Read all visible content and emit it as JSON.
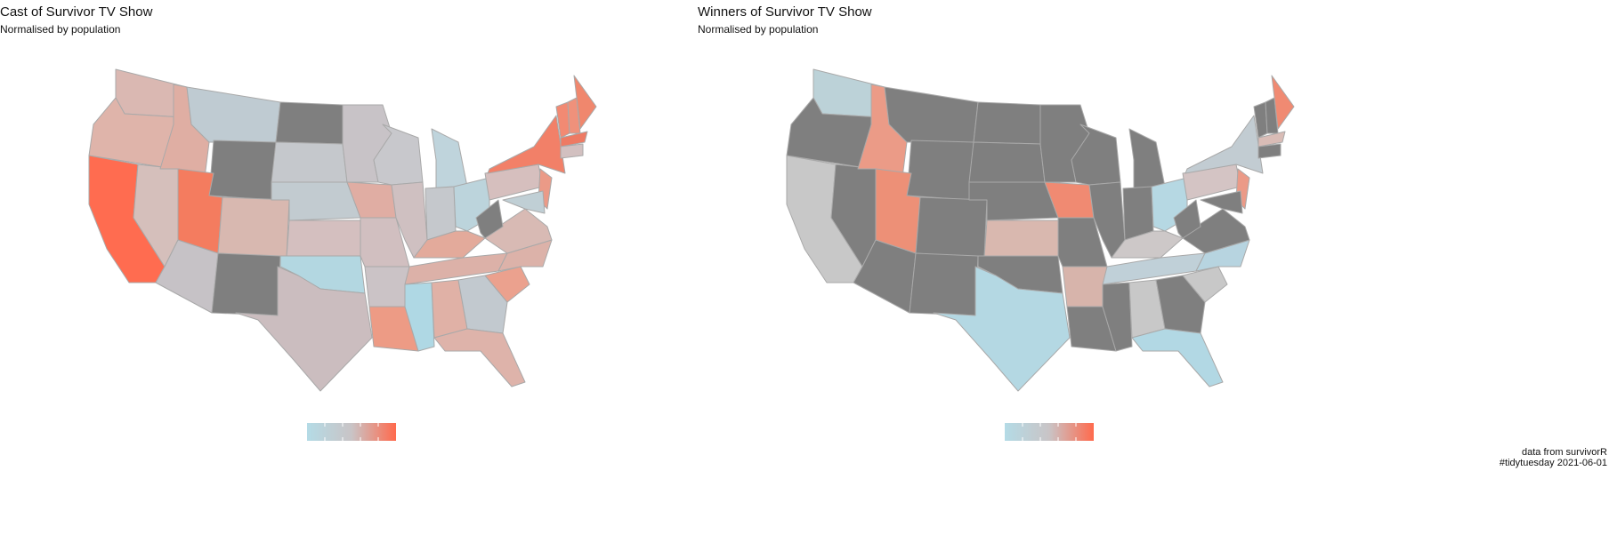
{
  "panels": [
    {
      "title": "Cast of Survivor TV Show",
      "subtitle": "Normalised by population",
      "fills": [
        "#dab8b2",
        "#dfb4aa",
        "#ff6c50",
        "#d5bfbb",
        "#dfaea3",
        "#bfcbd2",
        "#7f7f7f",
        "#f47c5f",
        "#c6c2c6",
        "#d8b8b0",
        "#7f7f7f",
        "#7f7f7f",
        "#c5c8cc",
        "#c2cbd0",
        "#d4bfbf",
        "#b3d7e1",
        "#cbbdbf",
        "#c8c3c7",
        "#e0ada3",
        "#d1bfc0",
        "#cbc3c6",
        "#ed9b85",
        "#c8c8cc",
        "#cfc0c1",
        "#bfd4dc",
        "#c5c8cc",
        "#bcd4dc",
        "#e3aa9b",
        "#dcb1a8",
        "#afd8e4",
        "#e0b1a6",
        "#c2c9cf",
        "#deb3aa",
        "#eba18e",
        "#dcb2a9",
        "#d8bab4",
        "#7f7f7f",
        "#d6bfbe",
        "#f28068",
        "#eb9a87",
        "#c0cfd5",
        "#f28a73",
        "#ef917b",
        "#f0876d",
        "#ee7a63",
        "#d2c0c0"
      ]
    },
    {
      "title": "Winners of Survivor TV Show",
      "subtitle": "Normalised by population",
      "fills": [
        "#bcd2d8",
        "#7f7f7f",
        "#c8c8c8",
        "#7f7f7f",
        "#eb9b87",
        "#7f7f7f",
        "#7f7f7f",
        "#ed9077",
        "#7f7f7f",
        "#7f7f7f",
        "#7f7f7f",
        "#7f7f7f",
        "#7f7f7f",
        "#7f7f7f",
        "#d9b8af",
        "#7f7f7f",
        "#b4d8e3",
        "#7f7f7f",
        "#f08a72",
        "#7f7f7f",
        "#d7b4ab",
        "#7f7f7f",
        "#7f7f7f",
        "#7f7f7f",
        "#7f7f7f",
        "#7f7f7f",
        "#b6d8e3",
        "#cdc8c8",
        "#c0d0d8",
        "#7f7f7f",
        "#c8c8c8",
        "#7f7f7f",
        "#b2d8e4",
        "#c8c8c8",
        "#b7d4e0",
        "#7f7f7f",
        "#7f7f7f",
        "#d4c4c4",
        "#c2ccd2",
        "#eb9a87",
        "#7f7f7f",
        "#7f7f7f",
        "#7f7f7f",
        "#f08a72",
        "#d9bcb6",
        "#7f7f7f"
      ]
    }
  ],
  "legend_colors": [
    "#b4dbe6",
    "#c9c4c6",
    "#ff6a4d"
  ],
  "caption": [
    "data from survivorR",
    "#tidytuesday 2021-06-01"
  ]
}
